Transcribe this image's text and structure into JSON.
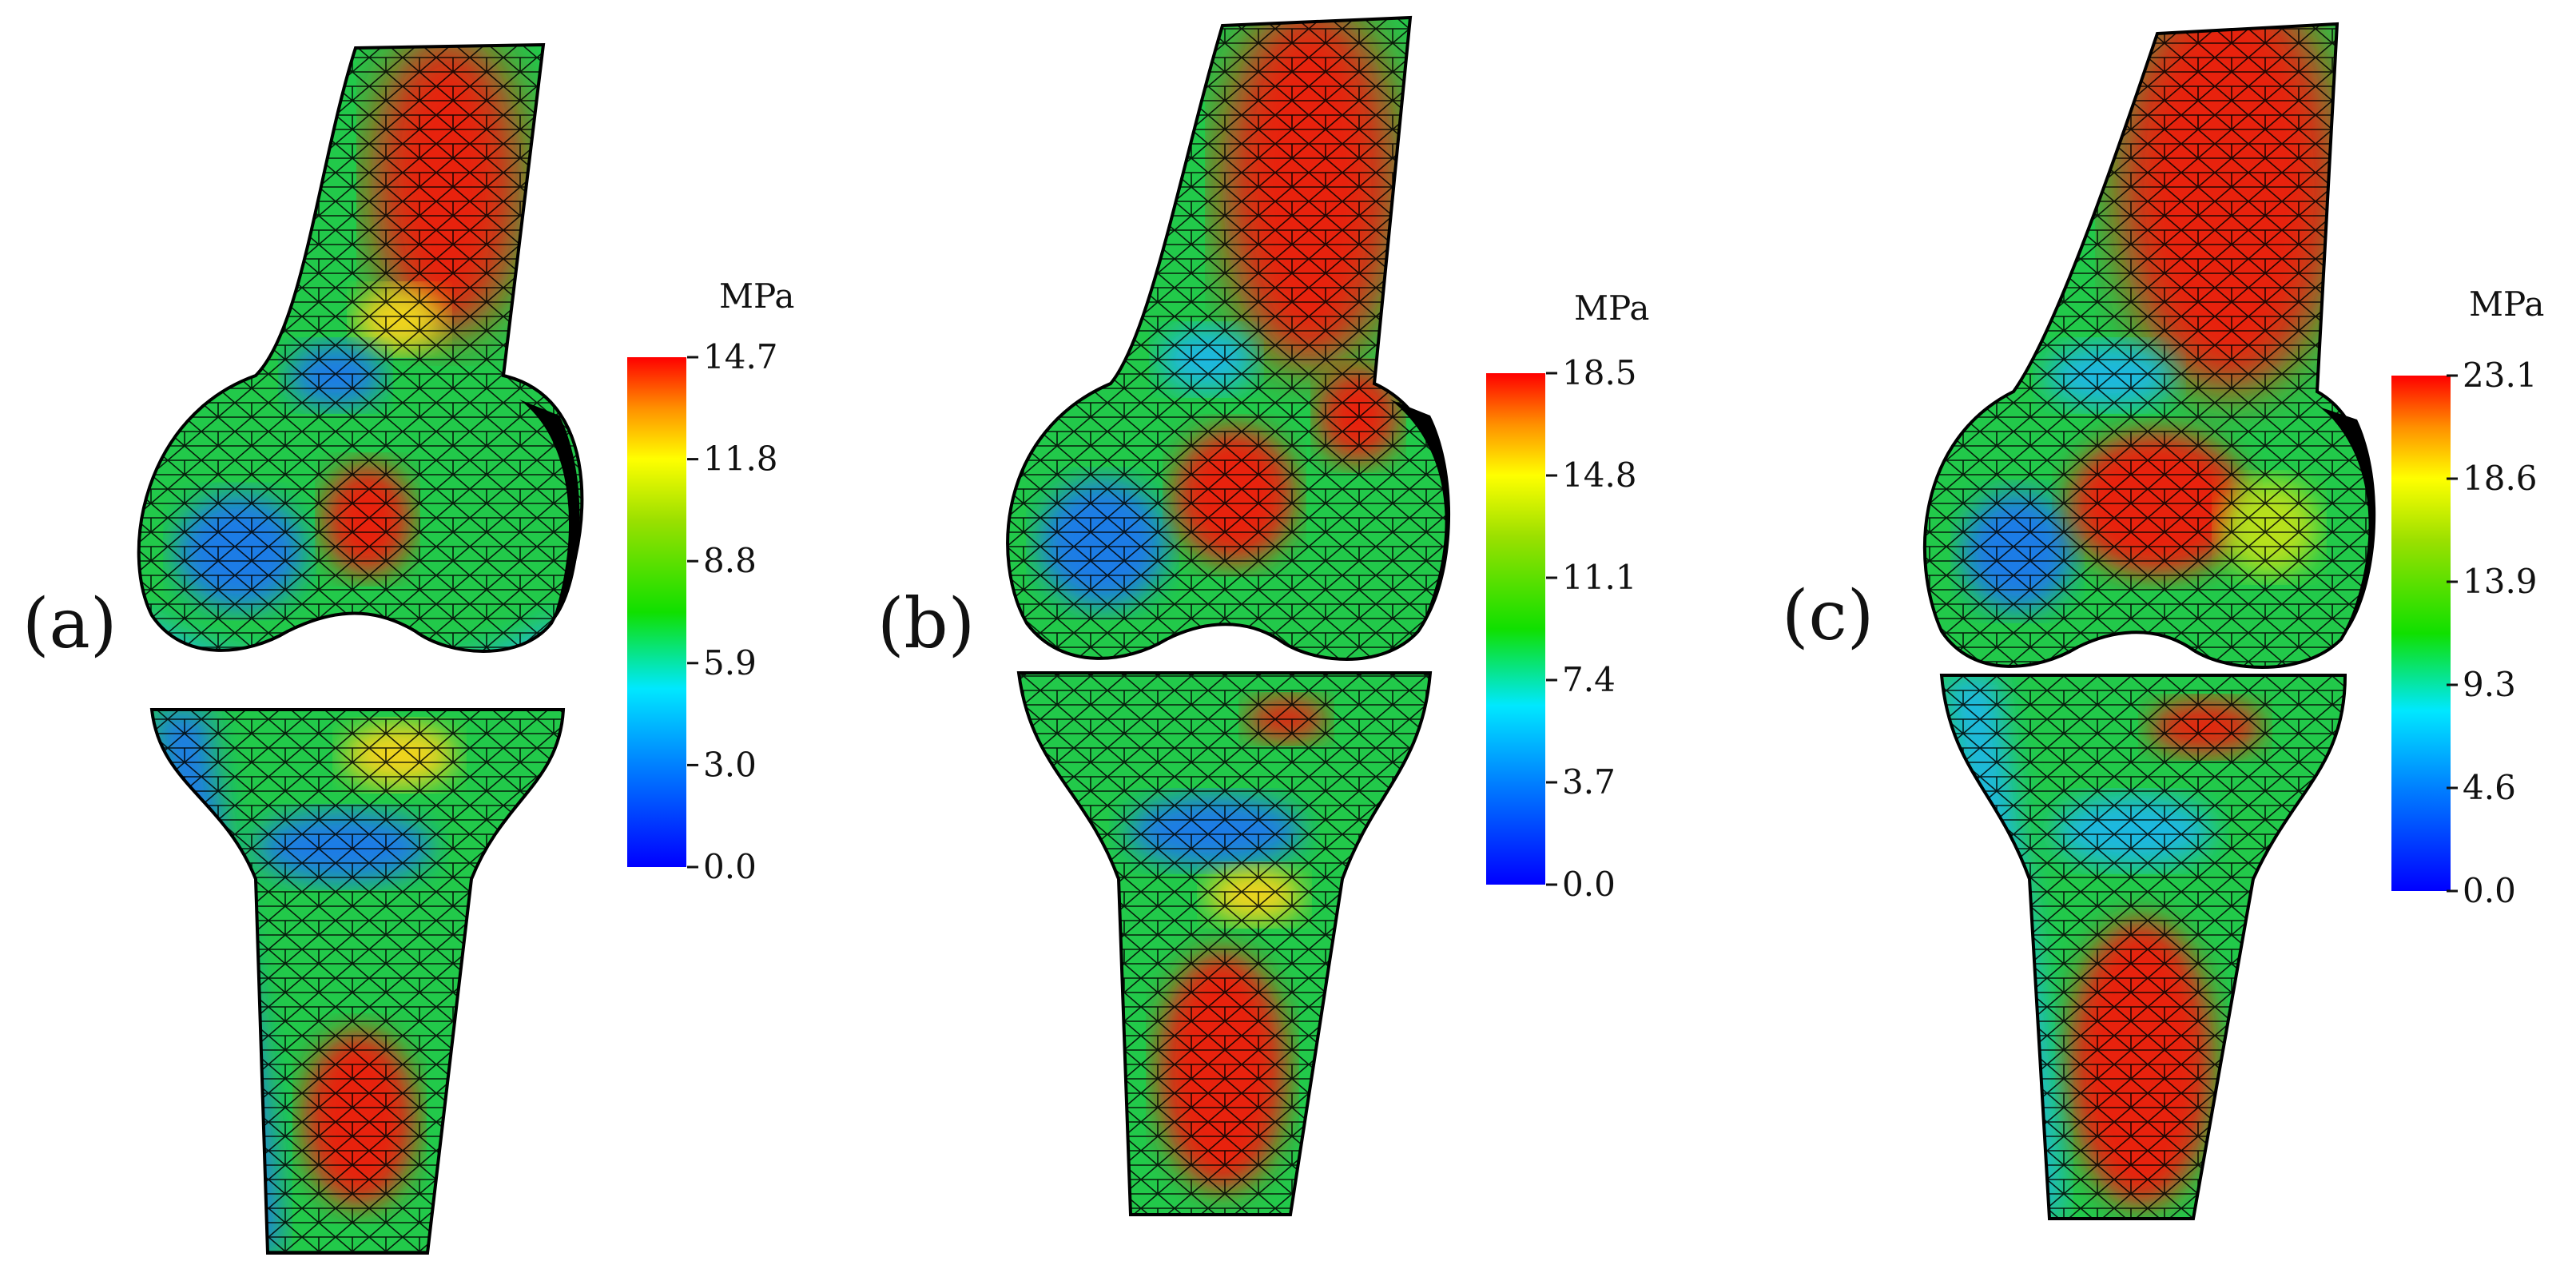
{
  "figure": {
    "panels": [
      {
        "label": "(a)",
        "colorbar": {
          "unit": "MPa",
          "max": 14.7,
          "ticks": [
            "14.7",
            "11.8",
            "8.8",
            "5.9",
            "3.0",
            "0.0"
          ]
        },
        "femur_regions": [
          {
            "color": "#e82010",
            "rx": 95,
            "ry": 190
          },
          {
            "color": "#1f7be6",
            "rx": 80,
            "ry": 72
          },
          {
            "color": "#e82010",
            "rx": 55,
            "ry": 70
          },
          {
            "color": "#f2d41a",
            "rx": 55,
            "ry": 40
          }
        ],
        "tibia_regions": [
          {
            "color": "#1f7be6",
            "rx": 110,
            "ry": 45
          },
          {
            "color": "#e82010",
            "rx": 70,
            "ry": 110
          },
          {
            "color": "#f2d41a",
            "rx": 70,
            "ry": 40
          }
        ]
      },
      {
        "label": "(b)",
        "colorbar": {
          "unit": "MPa",
          "max": 18.5,
          "ticks": [
            "18.5",
            "14.8",
            "11.1",
            "7.4",
            "3.7",
            "0.0"
          ]
        },
        "femur_regions": [
          {
            "color": "#e82010",
            "rx": 110,
            "ry": 230
          },
          {
            "color": "#1f7be6",
            "rx": 80,
            "ry": 80
          },
          {
            "color": "#e82010",
            "rx": 75,
            "ry": 85
          },
          {
            "color": "#1fb8e0",
            "rx": 60,
            "ry": 40
          }
        ],
        "tibia_regions": [
          {
            "color": "#1f7be6",
            "rx": 110,
            "ry": 45
          },
          {
            "color": "#e82010",
            "rx": 80,
            "ry": 150
          },
          {
            "color": "#e82010",
            "rx": 50,
            "ry": 28
          }
        ]
      },
      {
        "label": "(c)",
        "colorbar": {
          "unit": "MPa",
          "max": 23.1,
          "ticks": [
            "23.1",
            "18.6",
            "13.9",
            "9.3",
            "4.6",
            "0.0"
          ]
        },
        "femur_regions": [
          {
            "color": "#e82010",
            "rx": 140,
            "ry": 260
          },
          {
            "color": "#1f7be6",
            "rx": 70,
            "ry": 75
          },
          {
            "color": "#e82010",
            "rx": 110,
            "ry": 90
          },
          {
            "color": "#b8e01a",
            "rx": 60,
            "ry": 60
          }
        ],
        "tibia_regions": [
          {
            "color": "#1fb8e0",
            "rx": 100,
            "ry": 45
          },
          {
            "color": "#e82010",
            "rx": 90,
            "ry": 180
          },
          {
            "color": "#e82010",
            "rx": 70,
            "ry": 35
          }
        ]
      }
    ]
  }
}
